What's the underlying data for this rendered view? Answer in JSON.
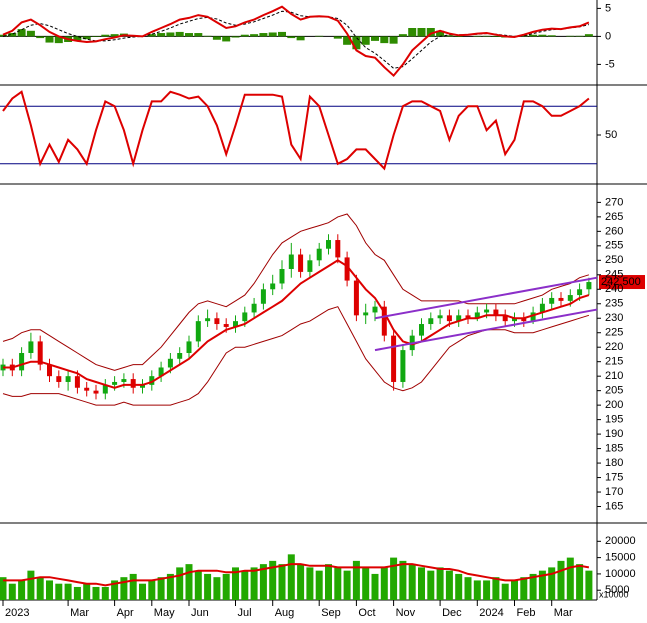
{
  "chart_data": [
    {
      "type": "macd",
      "macd": [
        0.3,
        1.0,
        2.5,
        3.0,
        2.0,
        0.8,
        0,
        -0.5,
        -0.8,
        -1.0,
        -0.9,
        -0.5,
        -0.2,
        0.2,
        0.1,
        0,
        0.8,
        1.5,
        2.2,
        3.0,
        3.3,
        3.8,
        3.5,
        2.5,
        1.5,
        1.8,
        2.5,
        3.0,
        3.8,
        4.5,
        5.3,
        4.0,
        3.0,
        3.5,
        3.6,
        3.5,
        2.8,
        0.5,
        -2.5,
        -3.5,
        -3.8,
        -5.5,
        -7.0,
        -5.0,
        -2.5,
        -1.0,
        0.5,
        1.0,
        0.5,
        0.2,
        0.3,
        0.5,
        0.6,
        0.3,
        0,
        -0.1,
        0.3,
        0.8,
        1.2,
        1.4,
        1.3,
        1.6,
        1.8,
        2.5
      ],
      "signal": [
        0,
        0.4,
        1.2,
        2.0,
        2.3,
        1.9,
        1.2,
        0.5,
        0,
        -0.5,
        -0.8,
        -0.8,
        -0.6,
        -0.3,
        -0.1,
        0,
        0.4,
        0.9,
        1.5,
        2.2,
        2.7,
        3.2,
        3.4,
        3.1,
        2.4,
        2.0,
        2.2,
        2.6,
        3.2,
        3.8,
        4.5,
        4.3,
        3.7,
        3.5,
        3.5,
        3.5,
        3.2,
        2.0,
        -0.2,
        -2.0,
        -3.0,
        -4.3,
        -5.7,
        -5.4,
        -4.0,
        -2.5,
        -1.0,
        0,
        0.3,
        0.3,
        0.3,
        0.4,
        0.5,
        0.4,
        0.2,
        0,
        0.1,
        0.5,
        0.9,
        1.2,
        1.3,
        1.5,
        1.7,
        2.1
      ],
      "histogram": [
        0.3,
        0.6,
        1.3,
        1.0,
        -0.3,
        -1.1,
        -1.2,
        -1.0,
        -0.8,
        -0.5,
        -0.1,
        0.3,
        0.4,
        0.5,
        0.2,
        0,
        0.4,
        0.6,
        0.7,
        0.8,
        0.6,
        0.6,
        0.1,
        -0.6,
        -0.9,
        -0.2,
        0.3,
        0.4,
        0.6,
        0.7,
        0.8,
        -0.3,
        -0.7,
        0,
        0.1,
        0,
        -0.4,
        -1.5,
        -2.3,
        -1.5,
        -0.8,
        -1.2,
        -1.3,
        0.4,
        1.5,
        1.5,
        1.5,
        1.0,
        0.2,
        -0.1,
        0,
        0.1,
        0.1,
        -0.1,
        -0.2,
        -0.1,
        0.2,
        0.3,
        0.3,
        0.2,
        0,
        0.1,
        0.1,
        0.4
      ],
      "macd_color": "#dd0000",
      "signal_color": "#000000",
      "histogram_color": "#2e8b00",
      "ylim": [
        -8.5,
        6.5
      ],
      "yticks": [
        -5,
        0,
        5
      ]
    },
    {
      "type": "line",
      "values": [
        75,
        88,
        95,
        60,
        20,
        40,
        22,
        45,
        35,
        20,
        55,
        85,
        80,
        55,
        20,
        55,
        85,
        85,
        95,
        92,
        88,
        90,
        80,
        60,
        30,
        60,
        92,
        92,
        92,
        92,
        90,
        40,
        25,
        90,
        80,
        50,
        20,
        25,
        35,
        35,
        25,
        15,
        50,
        80,
        85,
        85,
        80,
        75,
        45,
        70,
        80,
        80,
        55,
        65,
        30,
        45,
        85,
        85,
        80,
        70,
        70,
        75,
        80,
        88
      ],
      "color": "#dd0000",
      "reference_lines": [
        20,
        80
      ],
      "ylim": [
        0,
        100
      ],
      "yticks": [
        50
      ]
    },
    {
      "type": "candlestick",
      "open": [
        212,
        214,
        212,
        218,
        222,
        214,
        210,
        208,
        210,
        206,
        205,
        204,
        207,
        208,
        209,
        206,
        207,
        210,
        213,
        216,
        218,
        222,
        229,
        230,
        228,
        227,
        229,
        232,
        235,
        240,
        242,
        247,
        252,
        246,
        250,
        254,
        257,
        251,
        243,
        231,
        232,
        234,
        224,
        208,
        219,
        224,
        228,
        230,
        231,
        229,
        231,
        230,
        232,
        233,
        231,
        229,
        230,
        229,
        232,
        235,
        237,
        236,
        238,
        240
      ],
      "high": [
        216,
        216,
        220,
        225,
        224,
        216,
        212,
        212,
        212,
        208,
        207,
        209,
        210,
        211,
        211,
        209,
        212,
        215,
        218,
        220,
        224,
        231,
        233,
        232,
        230,
        231,
        234,
        237,
        242,
        245,
        250,
        256,
        254,
        252,
        256,
        259,
        259,
        253,
        245,
        235,
        236,
        236,
        226,
        221,
        226,
        230,
        232,
        233,
        233,
        233,
        233,
        234,
        235,
        235,
        233,
        232,
        232,
        234,
        237,
        239,
        239,
        240,
        242,
        244
      ],
      "low": [
        210,
        210,
        210,
        216,
        212,
        208,
        206,
        205,
        204,
        203,
        202,
        202,
        205,
        206,
        204,
        204,
        205,
        208,
        211,
        214,
        216,
        220,
        227,
        226,
        225,
        225,
        227,
        230,
        233,
        238,
        240,
        244,
        244,
        244,
        248,
        252,
        249,
        241,
        229,
        228,
        229,
        222,
        205,
        206,
        217,
        222,
        226,
        228,
        227,
        227,
        228,
        229,
        230,
        229,
        227,
        227,
        227,
        228,
        230,
        233,
        234,
        234,
        236,
        238
      ],
      "close": [
        214,
        212,
        218,
        222,
        214,
        210,
        208,
        210,
        206,
        205,
        204,
        207,
        208,
        209,
        206,
        207,
        210,
        213,
        216,
        218,
        222,
        229,
        230,
        228,
        227,
        229,
        232,
        235,
        240,
        242,
        247,
        252,
        246,
        250,
        254,
        257,
        251,
        243,
        231,
        232,
        234,
        224,
        208,
        219,
        224,
        228,
        230,
        231,
        229,
        231,
        230,
        232,
        233,
        231,
        229,
        230,
        229,
        232,
        235,
        237,
        236,
        238,
        240,
        242.5
      ],
      "up_color": "#11a811",
      "down_color": "#dd0000",
      "bands": {
        "upper": [
          222,
          223,
          225,
          226,
          226,
          224,
          222,
          220,
          218,
          216,
          214,
          213,
          212,
          213,
          214,
          214,
          217,
          220,
          224,
          228,
          232,
          235,
          236,
          235,
          234,
          236,
          238,
          242,
          247,
          252,
          256,
          258,
          260,
          261,
          262,
          263,
          265,
          266,
          262,
          256,
          252,
          250,
          245,
          240,
          238,
          236,
          236,
          236,
          236,
          236,
          235,
          235,
          235,
          235,
          235,
          235,
          236,
          237,
          238,
          240,
          241,
          242,
          244,
          245
        ],
        "middle": [
          213,
          213,
          214,
          215,
          215,
          214,
          213,
          212,
          211,
          209,
          208,
          207,
          206,
          207,
          207,
          207,
          208,
          210,
          212,
          214,
          216,
          219,
          222,
          224,
          226,
          227,
          228,
          230,
          232,
          234,
          236,
          239,
          242,
          244,
          246,
          248,
          250,
          248,
          244,
          240,
          237,
          232,
          226,
          222,
          221,
          222,
          224,
          226,
          228,
          229,
          230,
          230,
          231,
          231,
          231,
          230,
          230,
          231,
          232,
          233,
          234,
          235,
          237,
          238
        ],
        "lower": [
          204,
          203,
          203,
          204,
          204,
          204,
          204,
          203,
          202,
          201,
          200,
          200,
          200,
          201,
          200,
          200,
          200,
          200,
          200,
          201,
          202,
          204,
          208,
          213,
          218,
          220,
          220,
          221,
          222,
          223,
          224,
          226,
          228,
          229,
          231,
          233,
          234,
          228,
          222,
          216,
          212,
          208,
          206,
          205,
          206,
          208,
          212,
          216,
          220,
          222,
          224,
          225,
          226,
          226,
          226,
          225,
          225,
          225,
          226,
          227,
          228,
          229,
          230,
          231
        ],
        "band_color": "#a00000",
        "middle_color": "#dd0000"
      },
      "trendlines": [
        {
          "x": [
            40,
            64
          ],
          "values": [
            230,
            244
          ]
        },
        {
          "x": [
            40,
            64
          ],
          "values": [
            219,
            233
          ]
        }
      ],
      "trend_color": "#8b2fc9",
      "last_value": {
        "value": 242.5,
        "label": "242.500"
      },
      "ylim": [
        160,
        276
      ],
      "yticks": [
        165,
        170,
        175,
        180,
        185,
        190,
        195,
        200,
        205,
        210,
        215,
        220,
        225,
        230,
        235,
        240,
        245,
        250,
        255,
        260,
        265,
        270
      ]
    },
    {
      "type": "bar",
      "categories": [
        "2023",
        null,
        null,
        null,
        null,
        null,
        null,
        "Mar",
        null,
        null,
        null,
        null,
        "Apr",
        null,
        null,
        null,
        "May",
        null,
        null,
        null,
        "Jun",
        null,
        null,
        null,
        null,
        "Jul",
        null,
        null,
        null,
        "Aug",
        null,
        null,
        null,
        null,
        "Sep",
        null,
        null,
        null,
        "Oct",
        null,
        null,
        null,
        "Nov",
        null,
        null,
        null,
        null,
        "Dec",
        null,
        null,
        null,
        "2024",
        null,
        null,
        null,
        "Feb",
        null,
        null,
        null,
        "Mar",
        null,
        null,
        null,
        null
      ],
      "values": [
        9000,
        7000,
        8000,
        11000,
        9000,
        8000,
        7000,
        7000,
        6000,
        7000,
        6000,
        6000,
        8000,
        9000,
        10000,
        7000,
        8000,
        9000,
        10000,
        12000,
        13000,
        11000,
        10000,
        9000,
        10000,
        12000,
        11000,
        12000,
        13000,
        14000,
        13000,
        16000,
        13000,
        12000,
        11000,
        13000,
        12000,
        11000,
        14000,
        12000,
        10000,
        12000,
        15000,
        14000,
        13000,
        12000,
        11000,
        12000,
        11000,
        10000,
        9000,
        8000,
        8000,
        9000,
        7000,
        8000,
        9000,
        10000,
        11000,
        12000,
        14000,
        15000,
        13000,
        11000
      ],
      "color": "#22a800",
      "line_values": [
        8000,
        8000,
        8000,
        8500,
        9000,
        9000,
        8500,
        8000,
        7500,
        7000,
        7000,
        6500,
        7000,
        7500,
        8000,
        8000,
        8000,
        8500,
        9000,
        9500,
        10500,
        11000,
        11000,
        11000,
        10500,
        10500,
        11000,
        11000,
        11500,
        12000,
        12500,
        13000,
        13000,
        12500,
        12500,
        12500,
        12000,
        12000,
        12000,
        12000,
        12000,
        12000,
        12500,
        13000,
        13000,
        12500,
        12000,
        11500,
        11500,
        11000,
        10000,
        9500,
        9000,
        8500,
        8000,
        8000,
        8500,
        9000,
        9500,
        10000,
        11000,
        12000,
        12500,
        12000
      ],
      "line_color": "#dd0000",
      "unit_label": "x10000",
      "ylim": [
        2000,
        25000
      ],
      "yticks": [
        5000,
        10000,
        15000,
        20000
      ]
    }
  ]
}
